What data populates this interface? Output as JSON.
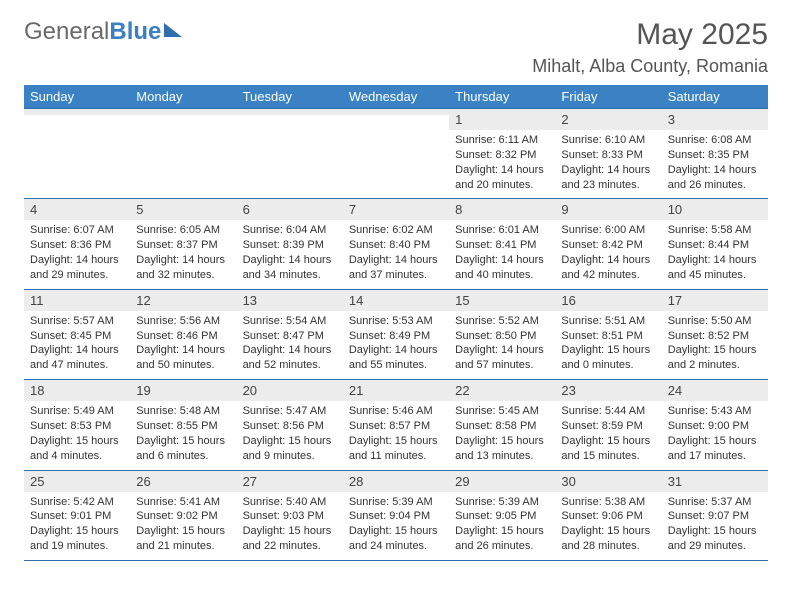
{
  "logo": {
    "text1": "General",
    "text2": "Blue"
  },
  "title": "May 2025",
  "location": "Mihalt, Alba County, Romania",
  "colors": {
    "header_bg": "#3b82c4",
    "header_text": "#ffffff",
    "daynum_bg": "#ececec",
    "border": "#2f6fb0",
    "text": "#333333"
  },
  "weekdays": [
    "Sunday",
    "Monday",
    "Tuesday",
    "Wednesday",
    "Thursday",
    "Friday",
    "Saturday"
  ],
  "weeks": [
    [
      null,
      null,
      null,
      null,
      {
        "day": "1",
        "sunrise": "6:11 AM",
        "sunset": "8:32 PM",
        "daylight": "14 hours and 20 minutes."
      },
      {
        "day": "2",
        "sunrise": "6:10 AM",
        "sunset": "8:33 PM",
        "daylight": "14 hours and 23 minutes."
      },
      {
        "day": "3",
        "sunrise": "6:08 AM",
        "sunset": "8:35 PM",
        "daylight": "14 hours and 26 minutes."
      }
    ],
    [
      {
        "day": "4",
        "sunrise": "6:07 AM",
        "sunset": "8:36 PM",
        "daylight": "14 hours and 29 minutes."
      },
      {
        "day": "5",
        "sunrise": "6:05 AM",
        "sunset": "8:37 PM",
        "daylight": "14 hours and 32 minutes."
      },
      {
        "day": "6",
        "sunrise": "6:04 AM",
        "sunset": "8:39 PM",
        "daylight": "14 hours and 34 minutes."
      },
      {
        "day": "7",
        "sunrise": "6:02 AM",
        "sunset": "8:40 PM",
        "daylight": "14 hours and 37 minutes."
      },
      {
        "day": "8",
        "sunrise": "6:01 AM",
        "sunset": "8:41 PM",
        "daylight": "14 hours and 40 minutes."
      },
      {
        "day": "9",
        "sunrise": "6:00 AM",
        "sunset": "8:42 PM",
        "daylight": "14 hours and 42 minutes."
      },
      {
        "day": "10",
        "sunrise": "5:58 AM",
        "sunset": "8:44 PM",
        "daylight": "14 hours and 45 minutes."
      }
    ],
    [
      {
        "day": "11",
        "sunrise": "5:57 AM",
        "sunset": "8:45 PM",
        "daylight": "14 hours and 47 minutes."
      },
      {
        "day": "12",
        "sunrise": "5:56 AM",
        "sunset": "8:46 PM",
        "daylight": "14 hours and 50 minutes."
      },
      {
        "day": "13",
        "sunrise": "5:54 AM",
        "sunset": "8:47 PM",
        "daylight": "14 hours and 52 minutes."
      },
      {
        "day": "14",
        "sunrise": "5:53 AM",
        "sunset": "8:49 PM",
        "daylight": "14 hours and 55 minutes."
      },
      {
        "day": "15",
        "sunrise": "5:52 AM",
        "sunset": "8:50 PM",
        "daylight": "14 hours and 57 minutes."
      },
      {
        "day": "16",
        "sunrise": "5:51 AM",
        "sunset": "8:51 PM",
        "daylight": "15 hours and 0 minutes."
      },
      {
        "day": "17",
        "sunrise": "5:50 AM",
        "sunset": "8:52 PM",
        "daylight": "15 hours and 2 minutes."
      }
    ],
    [
      {
        "day": "18",
        "sunrise": "5:49 AM",
        "sunset": "8:53 PM",
        "daylight": "15 hours and 4 minutes."
      },
      {
        "day": "19",
        "sunrise": "5:48 AM",
        "sunset": "8:55 PM",
        "daylight": "15 hours and 6 minutes."
      },
      {
        "day": "20",
        "sunrise": "5:47 AM",
        "sunset": "8:56 PM",
        "daylight": "15 hours and 9 minutes."
      },
      {
        "day": "21",
        "sunrise": "5:46 AM",
        "sunset": "8:57 PM",
        "daylight": "15 hours and 11 minutes."
      },
      {
        "day": "22",
        "sunrise": "5:45 AM",
        "sunset": "8:58 PM",
        "daylight": "15 hours and 13 minutes."
      },
      {
        "day": "23",
        "sunrise": "5:44 AM",
        "sunset": "8:59 PM",
        "daylight": "15 hours and 15 minutes."
      },
      {
        "day": "24",
        "sunrise": "5:43 AM",
        "sunset": "9:00 PM",
        "daylight": "15 hours and 17 minutes."
      }
    ],
    [
      {
        "day": "25",
        "sunrise": "5:42 AM",
        "sunset": "9:01 PM",
        "daylight": "15 hours and 19 minutes."
      },
      {
        "day": "26",
        "sunrise": "5:41 AM",
        "sunset": "9:02 PM",
        "daylight": "15 hours and 21 minutes."
      },
      {
        "day": "27",
        "sunrise": "5:40 AM",
        "sunset": "9:03 PM",
        "daylight": "15 hours and 22 minutes."
      },
      {
        "day": "28",
        "sunrise": "5:39 AM",
        "sunset": "9:04 PM",
        "daylight": "15 hours and 24 minutes."
      },
      {
        "day": "29",
        "sunrise": "5:39 AM",
        "sunset": "9:05 PM",
        "daylight": "15 hours and 26 minutes."
      },
      {
        "day": "30",
        "sunrise": "5:38 AM",
        "sunset": "9:06 PM",
        "daylight": "15 hours and 28 minutes."
      },
      {
        "day": "31",
        "sunrise": "5:37 AM",
        "sunset": "9:07 PM",
        "daylight": "15 hours and 29 minutes."
      }
    ]
  ],
  "labels": {
    "sunrise": "Sunrise: ",
    "sunset": "Sunset: ",
    "daylight": "Daylight: "
  }
}
